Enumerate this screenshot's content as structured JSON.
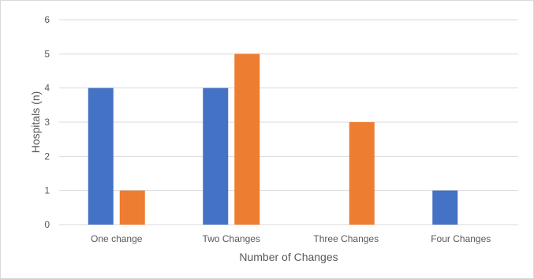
{
  "chart_data": {
    "type": "bar",
    "categories": [
      "One change",
      "Two Changes",
      "Three Changes",
      "Four Changes"
    ],
    "series": [
      {
        "color": "#4472c4",
        "values": [
          4,
          4,
          0,
          1
        ]
      },
      {
        "color": "#ed7d31",
        "values": [
          1,
          5,
          3,
          0
        ]
      }
    ],
    "title": "",
    "xlabel": "Number of Changes",
    "ylabel": "Hospitals (n)",
    "ylim": [
      0,
      6
    ],
    "yticks": [
      0,
      1,
      2,
      3,
      4,
      5,
      6
    ],
    "grid": true,
    "legend": "none"
  }
}
